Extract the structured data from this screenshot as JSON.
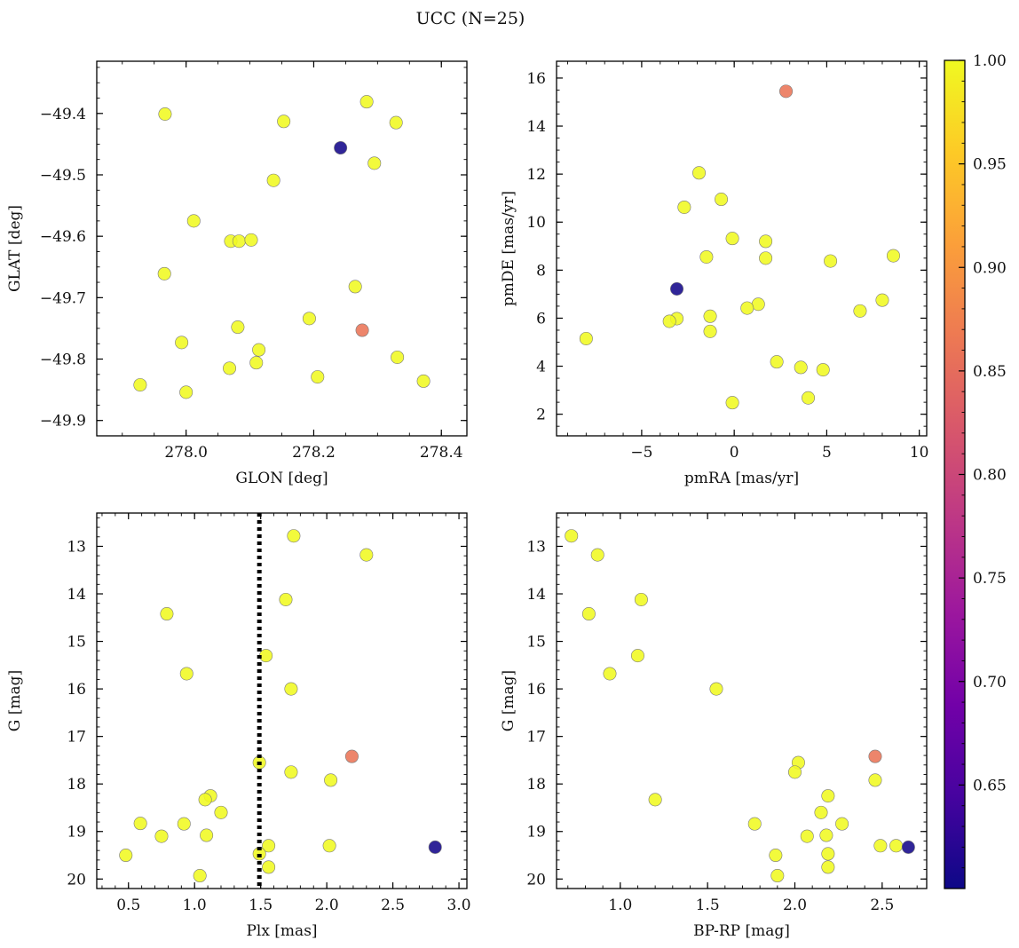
{
  "figure": {
    "suptitle": "UCC (N=25)",
    "colorbar": {
      "min": 0.6,
      "max": 1.0,
      "ticks": [
        0.65,
        0.7,
        0.75,
        0.8,
        0.85,
        0.9,
        0.95,
        1.0
      ],
      "tick_labels": [
        "0.65",
        "0.70",
        "0.75",
        "0.80",
        "0.85",
        "0.90",
        "0.95",
        "1.00"
      ],
      "colormap": "plasma",
      "colors": [
        "#0d0887",
        "#46039f",
        "#7201a8",
        "#9c179e",
        "#bd3786",
        "#d8576b",
        "#ed7953",
        "#fb9f3a",
        "#fdca26",
        "#f0f921"
      ]
    }
  },
  "chart_data": [
    {
      "id": "glon_glat",
      "type": "scatter",
      "title": "",
      "xlabel": "GLON [deg]",
      "ylabel": "GLAT [deg]",
      "xlim": [
        277.86,
        278.44
      ],
      "ylim": [
        -49.925,
        -49.315
      ],
      "y_inverted": false,
      "grid": false,
      "xticks": [
        278.0,
        278.2,
        278.4
      ],
      "xtick_labels": [
        "278.0",
        "278.2",
        "278.4"
      ],
      "xminor": 0.05,
      "yticks": [
        -49.4,
        -49.5,
        -49.6,
        -49.7,
        -49.8,
        -49.9
      ],
      "ytick_labels": [
        "−49.4",
        "−49.5",
        "−49.6",
        "−49.7",
        "−49.8",
        "−49.9"
      ],
      "yminor": 0.025,
      "points": [
        {
          "x": 277.967,
          "y": -49.401,
          "c": 1.0
        },
        {
          "x": 278.283,
          "y": -49.381,
          "c": 1.0
        },
        {
          "x": 278.329,
          "y": -49.415,
          "c": 1.0
        },
        {
          "x": 278.153,
          "y": -49.413,
          "c": 1.0
        },
        {
          "x": 278.242,
          "y": -49.456,
          "c": 0.605
        },
        {
          "x": 278.295,
          "y": -49.481,
          "c": 1.0
        },
        {
          "x": 278.137,
          "y": -49.509,
          "c": 1.0
        },
        {
          "x": 278.012,
          "y": -49.575,
          "c": 1.0
        },
        {
          "x": 278.07,
          "y": -49.608,
          "c": 1.0
        },
        {
          "x": 278.083,
          "y": -49.608,
          "c": 1.0
        },
        {
          "x": 278.102,
          "y": -49.606,
          "c": 1.0
        },
        {
          "x": 277.966,
          "y": -49.661,
          "c": 1.0
        },
        {
          "x": 278.265,
          "y": -49.682,
          "c": 1.0
        },
        {
          "x": 278.193,
          "y": -49.734,
          "c": 1.0
        },
        {
          "x": 278.081,
          "y": -49.748,
          "c": 1.0
        },
        {
          "x": 278.276,
          "y": -49.753,
          "c": 0.86
        },
        {
          "x": 277.993,
          "y": -49.773,
          "c": 1.0
        },
        {
          "x": 278.114,
          "y": -49.785,
          "c": 1.0
        },
        {
          "x": 278.331,
          "y": -49.797,
          "c": 1.0
        },
        {
          "x": 278.11,
          "y": -49.806,
          "c": 1.0
        },
        {
          "x": 278.068,
          "y": -49.815,
          "c": 1.0
        },
        {
          "x": 278.206,
          "y": -49.829,
          "c": 1.0
        },
        {
          "x": 278.372,
          "y": -49.836,
          "c": 1.0
        },
        {
          "x": 277.928,
          "y": -49.842,
          "c": 1.0
        },
        {
          "x": 278.0,
          "y": -49.854,
          "c": 1.0
        }
      ]
    },
    {
      "id": "pm",
      "type": "scatter",
      "title": "",
      "xlabel": "pmRA [mas/yr]",
      "ylabel": "pmDE [mas/yr]",
      "xlim": [
        -9.6,
        10.4
      ],
      "ylim": [
        1.1,
        16.7
      ],
      "y_inverted": false,
      "grid": false,
      "xticks": [
        -5,
        0,
        5,
        10
      ],
      "xtick_labels": [
        "−5",
        "0",
        "5",
        "10"
      ],
      "xminor": 1,
      "yticks": [
        2,
        4,
        6,
        8,
        10,
        12,
        14,
        16
      ],
      "ytick_labels": [
        "2",
        "4",
        "6",
        "8",
        "10",
        "12",
        "14",
        "16"
      ],
      "yminor": 0.5,
      "points": [
        {
          "x": 2.8,
          "y": 15.45,
          "c": 0.86
        },
        {
          "x": -1.9,
          "y": 12.05,
          "c": 1.0
        },
        {
          "x": -0.7,
          "y": 10.95,
          "c": 1.0
        },
        {
          "x": -2.7,
          "y": 10.62,
          "c": 1.0
        },
        {
          "x": -0.1,
          "y": 9.32,
          "c": 1.0
        },
        {
          "x": 1.7,
          "y": 9.2,
          "c": 1.0
        },
        {
          "x": -1.5,
          "y": 8.55,
          "c": 1.0
        },
        {
          "x": 1.7,
          "y": 8.5,
          "c": 1.0
        },
        {
          "x": 8.6,
          "y": 8.6,
          "c": 1.0
        },
        {
          "x": 5.2,
          "y": 8.38,
          "c": 1.0
        },
        {
          "x": -3.1,
          "y": 7.22,
          "c": 0.605
        },
        {
          "x": 8.0,
          "y": 6.75,
          "c": 1.0
        },
        {
          "x": 1.3,
          "y": 6.58,
          "c": 1.0
        },
        {
          "x": 0.7,
          "y": 6.42,
          "c": 1.0
        },
        {
          "x": 6.8,
          "y": 6.3,
          "c": 1.0
        },
        {
          "x": -1.3,
          "y": 6.08,
          "c": 1.0
        },
        {
          "x": -3.1,
          "y": 5.98,
          "c": 1.0
        },
        {
          "x": -3.5,
          "y": 5.87,
          "c": 1.0
        },
        {
          "x": -1.3,
          "y": 5.45,
          "c": 1.0
        },
        {
          "x": -8.0,
          "y": 5.15,
          "c": 1.0
        },
        {
          "x": 2.3,
          "y": 4.18,
          "c": 1.0
        },
        {
          "x": 3.6,
          "y": 3.95,
          "c": 1.0
        },
        {
          "x": 4.8,
          "y": 3.85,
          "c": 1.0
        },
        {
          "x": 4.0,
          "y": 2.68,
          "c": 1.0
        },
        {
          "x": -0.1,
          "y": 2.48,
          "c": 1.0
        }
      ]
    },
    {
      "id": "plx_g",
      "type": "scatter",
      "title": "",
      "xlabel": "Plx [mas]",
      "ylabel": "G [mag]",
      "xlim": [
        0.26,
        3.06
      ],
      "ylim": [
        20.2,
        12.3
      ],
      "y_inverted": true,
      "grid": false,
      "xticks": [
        0.5,
        1.0,
        1.5,
        2.0,
        2.5,
        3.0
      ],
      "xtick_labels": [
        "0.5",
        "1.0",
        "1.5",
        "2.0",
        "2.5",
        "3.0"
      ],
      "xminor": 0.1,
      "yticks": [
        13,
        14,
        15,
        16,
        17,
        18,
        19,
        20
      ],
      "ytick_labels": [
        "13",
        "14",
        "15",
        "16",
        "17",
        "18",
        "19",
        "20"
      ],
      "yminor": 0.2,
      "vline": {
        "x": 1.49,
        "style": "dotted",
        "color": "#000000"
      },
      "points": [
        {
          "x": 1.75,
          "y": 12.78,
          "c": 1.0
        },
        {
          "x": 2.3,
          "y": 13.18,
          "c": 1.0
        },
        {
          "x": 1.69,
          "y": 14.12,
          "c": 1.0
        },
        {
          "x": 0.79,
          "y": 14.42,
          "c": 1.0
        },
        {
          "x": 1.54,
          "y": 15.3,
          "c": 1.0
        },
        {
          "x": 0.94,
          "y": 15.68,
          "c": 1.0
        },
        {
          "x": 1.73,
          "y": 16.0,
          "c": 1.0
        },
        {
          "x": 2.19,
          "y": 17.42,
          "c": 0.86
        },
        {
          "x": 1.49,
          "y": 17.55,
          "c": 1.0
        },
        {
          "x": 1.73,
          "y": 17.75,
          "c": 1.0
        },
        {
          "x": 2.03,
          "y": 17.92,
          "c": 1.0
        },
        {
          "x": 1.12,
          "y": 18.25,
          "c": 1.0
        },
        {
          "x": 1.08,
          "y": 18.33,
          "c": 1.0
        },
        {
          "x": 1.2,
          "y": 18.6,
          "c": 1.0
        },
        {
          "x": 0.59,
          "y": 18.83,
          "c": 1.0
        },
        {
          "x": 0.92,
          "y": 18.84,
          "c": 1.0
        },
        {
          "x": 0.75,
          "y": 19.1,
          "c": 1.0
        },
        {
          "x": 1.09,
          "y": 19.08,
          "c": 1.0
        },
        {
          "x": 2.02,
          "y": 19.3,
          "c": 1.0
        },
        {
          "x": 1.56,
          "y": 19.3,
          "c": 1.0
        },
        {
          "x": 2.82,
          "y": 19.33,
          "c": 0.605
        },
        {
          "x": 1.49,
          "y": 19.47,
          "c": 1.0
        },
        {
          "x": 0.48,
          "y": 19.5,
          "c": 1.0
        },
        {
          "x": 1.56,
          "y": 19.75,
          "c": 1.0
        },
        {
          "x": 1.04,
          "y": 19.93,
          "c": 1.0
        }
      ]
    },
    {
      "id": "cmd",
      "type": "scatter",
      "title": "",
      "xlabel": "BP-RP [mag]",
      "ylabel": "G [mag]",
      "xlim": [
        0.635,
        2.755
      ],
      "ylim": [
        20.2,
        12.3
      ],
      "y_inverted": true,
      "grid": false,
      "xticks": [
        1.0,
        1.5,
        2.0,
        2.5
      ],
      "xtick_labels": [
        "1.0",
        "1.5",
        "2.0",
        "2.5"
      ],
      "xminor": 0.1,
      "yticks": [
        13,
        14,
        15,
        16,
        17,
        18,
        19,
        20
      ],
      "ytick_labels": [
        "13",
        "14",
        "15",
        "16",
        "17",
        "18",
        "19",
        "20"
      ],
      "yminor": 0.2,
      "points": [
        {
          "x": 0.72,
          "y": 12.78,
          "c": 1.0
        },
        {
          "x": 0.87,
          "y": 13.18,
          "c": 1.0
        },
        {
          "x": 1.12,
          "y": 14.12,
          "c": 1.0
        },
        {
          "x": 0.82,
          "y": 14.42,
          "c": 1.0
        },
        {
          "x": 1.1,
          "y": 15.3,
          "c": 1.0
        },
        {
          "x": 0.94,
          "y": 15.68,
          "c": 1.0
        },
        {
          "x": 1.55,
          "y": 16.0,
          "c": 1.0
        },
        {
          "x": 2.46,
          "y": 17.42,
          "c": 0.86
        },
        {
          "x": 2.02,
          "y": 17.55,
          "c": 1.0
        },
        {
          "x": 2.0,
          "y": 17.75,
          "c": 1.0
        },
        {
          "x": 2.46,
          "y": 17.92,
          "c": 1.0
        },
        {
          "x": 2.19,
          "y": 18.25,
          "c": 1.0
        },
        {
          "x": 1.2,
          "y": 18.33,
          "c": 1.0
        },
        {
          "x": 2.15,
          "y": 18.6,
          "c": 1.0
        },
        {
          "x": 2.27,
          "y": 18.84,
          "c": 1.0
        },
        {
          "x": 1.77,
          "y": 18.84,
          "c": 1.0
        },
        {
          "x": 2.07,
          "y": 19.1,
          "c": 1.0
        },
        {
          "x": 2.18,
          "y": 19.08,
          "c": 1.0
        },
        {
          "x": 2.49,
          "y": 19.3,
          "c": 1.0
        },
        {
          "x": 2.58,
          "y": 19.3,
          "c": 1.0
        },
        {
          "x": 2.65,
          "y": 19.33,
          "c": 0.605
        },
        {
          "x": 2.19,
          "y": 19.47,
          "c": 1.0
        },
        {
          "x": 1.89,
          "y": 19.5,
          "c": 1.0
        },
        {
          "x": 2.19,
          "y": 19.75,
          "c": 1.0
        },
        {
          "x": 1.9,
          "y": 19.93,
          "c": 1.0
        }
      ]
    }
  ]
}
